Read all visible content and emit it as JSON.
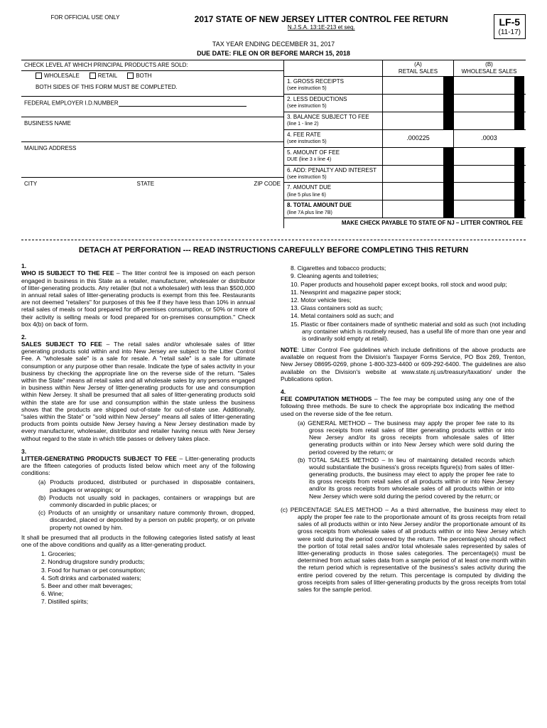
{
  "header": {
    "official_use": "FOR OFFICIAL USE ONLY",
    "title": "2017 STATE OF NEW JERSEY LITTER CONTROL FEE RETURN",
    "statute": "N.J.S.A. 13:1E-213 et seq.",
    "tax_year": "TAX YEAR ENDING DECEMBER 31, 2017",
    "due_date": "DUE DATE:  FILE ON OR BEFORE MARCH 15, 2018",
    "form_code": "LF-5",
    "form_rev": "(11-17)"
  },
  "left": {
    "check_level": "CHECK LEVEL AT WHICH PRINCIPAL PRODUCTS ARE SOLD:",
    "cb_wholesale": "WHOLESALE",
    "cb_retail": "RETAIL",
    "cb_both": "BOTH",
    "both_sides": "BOTH SIDES OF THIS FORM MUST BE COMPLETED.",
    "fein": "FEDERAL EMPLOYER I.D.NUMBER",
    "business": "BUSINESS NAME",
    "mailing": "MAILING ADDRESS",
    "city": "CITY",
    "state": "STATE",
    "zip": "ZIP CODE"
  },
  "right": {
    "col_a": "(A)",
    "col_a_sub": "RETAIL SALES",
    "col_b": "(B)",
    "col_b_sub": "WHOLESALE SALES",
    "rows": [
      {
        "label": "1. GROSS RECEIPTS",
        "sub": "(see instruction 5)",
        "a": "",
        "b": "",
        "black": true
      },
      {
        "label": "2. LESS DEDUCTIONS",
        "sub": "(see instruction 5)",
        "a": "",
        "b": "",
        "black": true
      },
      {
        "label": "3. BALANCE SUBJECT TO FEE",
        "sub": "(line 1 - line 2)",
        "a": "",
        "b": "",
        "black": true
      },
      {
        "label": "4. FEE RATE",
        "sub": "(see instruction 5)",
        "a": ".000225",
        "b": ".0003",
        "black": false
      },
      {
        "label": "5. AMOUNT OF FEE",
        "sub": "DUE (line 3 x line 4)",
        "a": "",
        "b": "",
        "black": true
      },
      {
        "label": "6. ADD:  PENALTY AND INTEREST",
        "sub": "(see instruction 5)",
        "a": "",
        "b": "",
        "black": true
      },
      {
        "label": "7. AMOUNT DUE",
        "sub": "(line 5 plus line 6)",
        "a": "",
        "b": "",
        "black": true
      },
      {
        "label": "8. TOTAL AMOUNT DUE",
        "sub": "(line 7A plus line 7B)",
        "a": "",
        "b": "",
        "black": true,
        "bold": true
      }
    ],
    "make_check": "MAKE CHECK PAYABLE TO STATE OF NJ – LITTER CONTROL FEE"
  },
  "detach": "DETACH AT PERFORATION --- READ INSTRUCTIONS CAREFULLY BEFORE COMPLETING THIS RETURN",
  "inst": {
    "s1_title": "WHO IS SUBJECT TO THE FEE",
    "s1_body": " – The litter control fee is imposed on each person engaged in business in this State as a retailer, manufacturer, wholesaler or distributor of litter-generating products.  Any retailer (but not a wholesaler) with less than $500,000 in annual retail sales of litter-generating products is exempt from this fee.  Restaurants are not deemed \"retailers\" for purposes of this fee if they have less than 10% in annual retail sales of meals or food prepared for off-premises consumption, or 50% or more of their activity is selling meals or food prepared for on-premises consumption.\" Check box 4(b) on back of form.",
    "s2_title": "SALES SUBJECT TO FEE",
    "s2_body": " – The retail sales and/or wholesale sales of litter generating products sold within and into New Jersey are subject to the Litter Control Fee.  A \"wholesale sale\" is a sale for resale.  A \"retail sale\" is a sale for ultimate consumption or any purpose other than resale.  Indicate the type of sales activity in your business by checking the appropriate line on the reverse side of the return.  \"Sales within the State\" means all retail sales and all wholesale sales by any persons engaged in business within New Jersey of litter-generating products for use and consumption within New Jersey.  It shall be presumed that all sales of litter-generating products sold within the state are for use and consumption within the state unless the business shows that the products are shipped out-of-state for out-of-state use.  Additionally, \"sales within the State\" or \"sold within New Jersey\" means all sales of litter-generating products from points outside New Jersey having a New Jersey destination made by every manufacturer, wholesaler, distributor and retailer having nexus with New Jersey without regard to the state in which title passes or delivery takes place.",
    "s3_title": "LITTER-GENERATING PRODUCTS SUBJECT TO FEE",
    "s3_body": " – Litter-generating products are the fifteen categories of products listed below which meet any of the following conditions:",
    "s3_sub": [
      "(a)  Products produced, distributed or purchased in disposable containers, packages or wrappings; or",
      "(b)  Products not usually sold in packages, containers or wrappings but are commonly discarded in public places; or",
      "(c)  Products of an unsightly or unsanitary nature commonly thrown, dropped, discarded, placed or deposited by a person on public property, or on private property not owned by him."
    ],
    "s3_presume": "It shall be presumed that all products in the following categories listed satisfy at least one of the above conditions and qualify as a litter-generating product.",
    "s3_list": [
      "1.   Groceries;",
      "2.   Nondrug drugstore sundry products;",
      "3.   Food for human or pet consumption;",
      "4.   Soft drinks and carbonated waters;",
      "5.   Beer and other malt beverages;",
      "6.   Wine;",
      "7.   Distilled spirits;"
    ],
    "s3_list2": [
      "8.   Cigarettes and tobacco products;",
      "9.   Cleaning agents and toiletries;",
      "10.  Paper products and household paper except books, roll stock and wood pulp;",
      "11.  Newsprint and magazine paper stock;",
      "12.  Motor vehicle tires;",
      "13.  Glass containers sold as such;",
      "14.  Metal containers sold as such; and",
      "15.  Plastic or fiber containers made of synthetic material and sold as such (not including any container which is routinely reused, has a useful life of more than one year and is ordinarily sold empty at retail)."
    ],
    "note_title": "NOTE",
    "note_body": ":  Litter Control Fee guidelines which include definitions of the above products are available on request from the Division's Taxpayer Forms Service, PO Box 269, Trenton, New Jersey 08695-0269, phone 1-800-323-4400 or 609-292-6400.  The guidelines are also available on the Division's website at www.state.nj.us/treasury/taxation/ under the Publications option.",
    "s4_title": "FEE COMPUTATION METHODS",
    "s4_body": " – The fee may be computed using any one of the following three methods.  Be sure to check the appropriate box indicating the method used on the reverse side of the fee return.",
    "s4_sub": [
      "(a)   GENERAL METHOD – The business may apply the proper fee rate to its gross receipts from retail sales of litter generating products within or into New Jersey and/or its gross receipts from wholesale sales of litter generating products within or into New Jersey which were sold during the period covered by the return; or",
      "(b)   TOTAL SALES METHOD – In lieu of maintaining detailed records which would substantiate the business's gross receipts figure(s) from sales of litter-generating products, the business may elect to apply the proper fee rate to its gross receipts from retail sales of all products within or into New Jersey and/or  its gross receipts from wholesale sales of all products within or into New Jersey which were sold during the period covered by the return; or"
    ],
    "s4_c": "(c)   PERCENTAGE SALES METHOD – As a third alternative, the business may elect to apply the proper fee rate to the proportionate amount of its gross receipts from retail sales of all products within or into New Jersey and/or the proportionate amount of its gross receipts from wholesale sales of all products within or into New Jersey which were sold during the period covered by the return.  The percentage(s) should reflect the portion of total retail sales and/or total wholesale sales represented by sales of litter-generating products in those sales categories.  The percentage(s) must be determined from actual sales data from a sample period of at least one month within the return period which is representative of the business's sales activity during the entire period covered by the return.  This percentage is computed by dividing the gross receipts from sales of litter-generating products by the gross receipts from total sales for the sample period."
  }
}
